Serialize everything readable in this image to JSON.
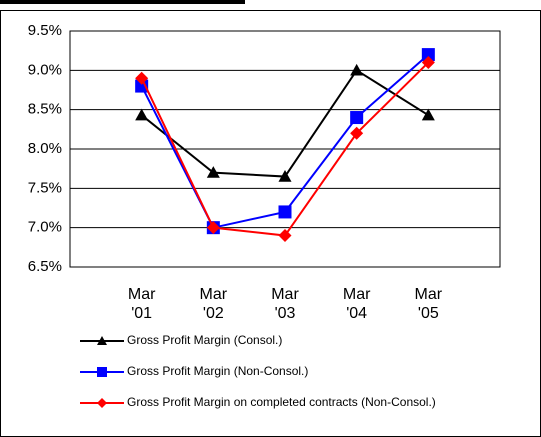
{
  "chart_data": {
    "type": "line",
    "categories": [
      "Mar\n'01",
      "Mar\n'02",
      "Mar\n'03",
      "Mar\n'04",
      "Mar\n'05"
    ],
    "series": [
      {
        "name": "Gross Profit Margin (Consol.)",
        "color": "#000000",
        "marker": "triangle",
        "values": [
          8.43,
          7.7,
          7.65,
          9.0,
          8.43
        ]
      },
      {
        "name": "Gross Profit Margin (Non-Consol.)",
        "color": "#0000ff",
        "marker": "square",
        "values": [
          8.8,
          7.0,
          7.2,
          8.4,
          9.2
        ]
      },
      {
        "name": "Gross Profit Margin on completed contracts (Non-Consol.)",
        "color": "#ff0000",
        "marker": "diamond",
        "values": [
          8.9,
          7.0,
          6.9,
          8.2,
          9.1
        ]
      }
    ],
    "ylim": [
      6.5,
      9.5
    ],
    "yticks": [
      {
        "value": 6.5,
        "label": "6.5%"
      },
      {
        "value": 7.0,
        "label": "7.0%"
      },
      {
        "value": 7.5,
        "label": "7.5%"
      },
      {
        "value": 8.0,
        "label": "8.0%"
      },
      {
        "value": 8.5,
        "label": "8.5%"
      },
      {
        "value": 9.0,
        "label": "9.0%"
      },
      {
        "value": 9.5,
        "label": "9.5%"
      }
    ],
    "grid": true
  }
}
